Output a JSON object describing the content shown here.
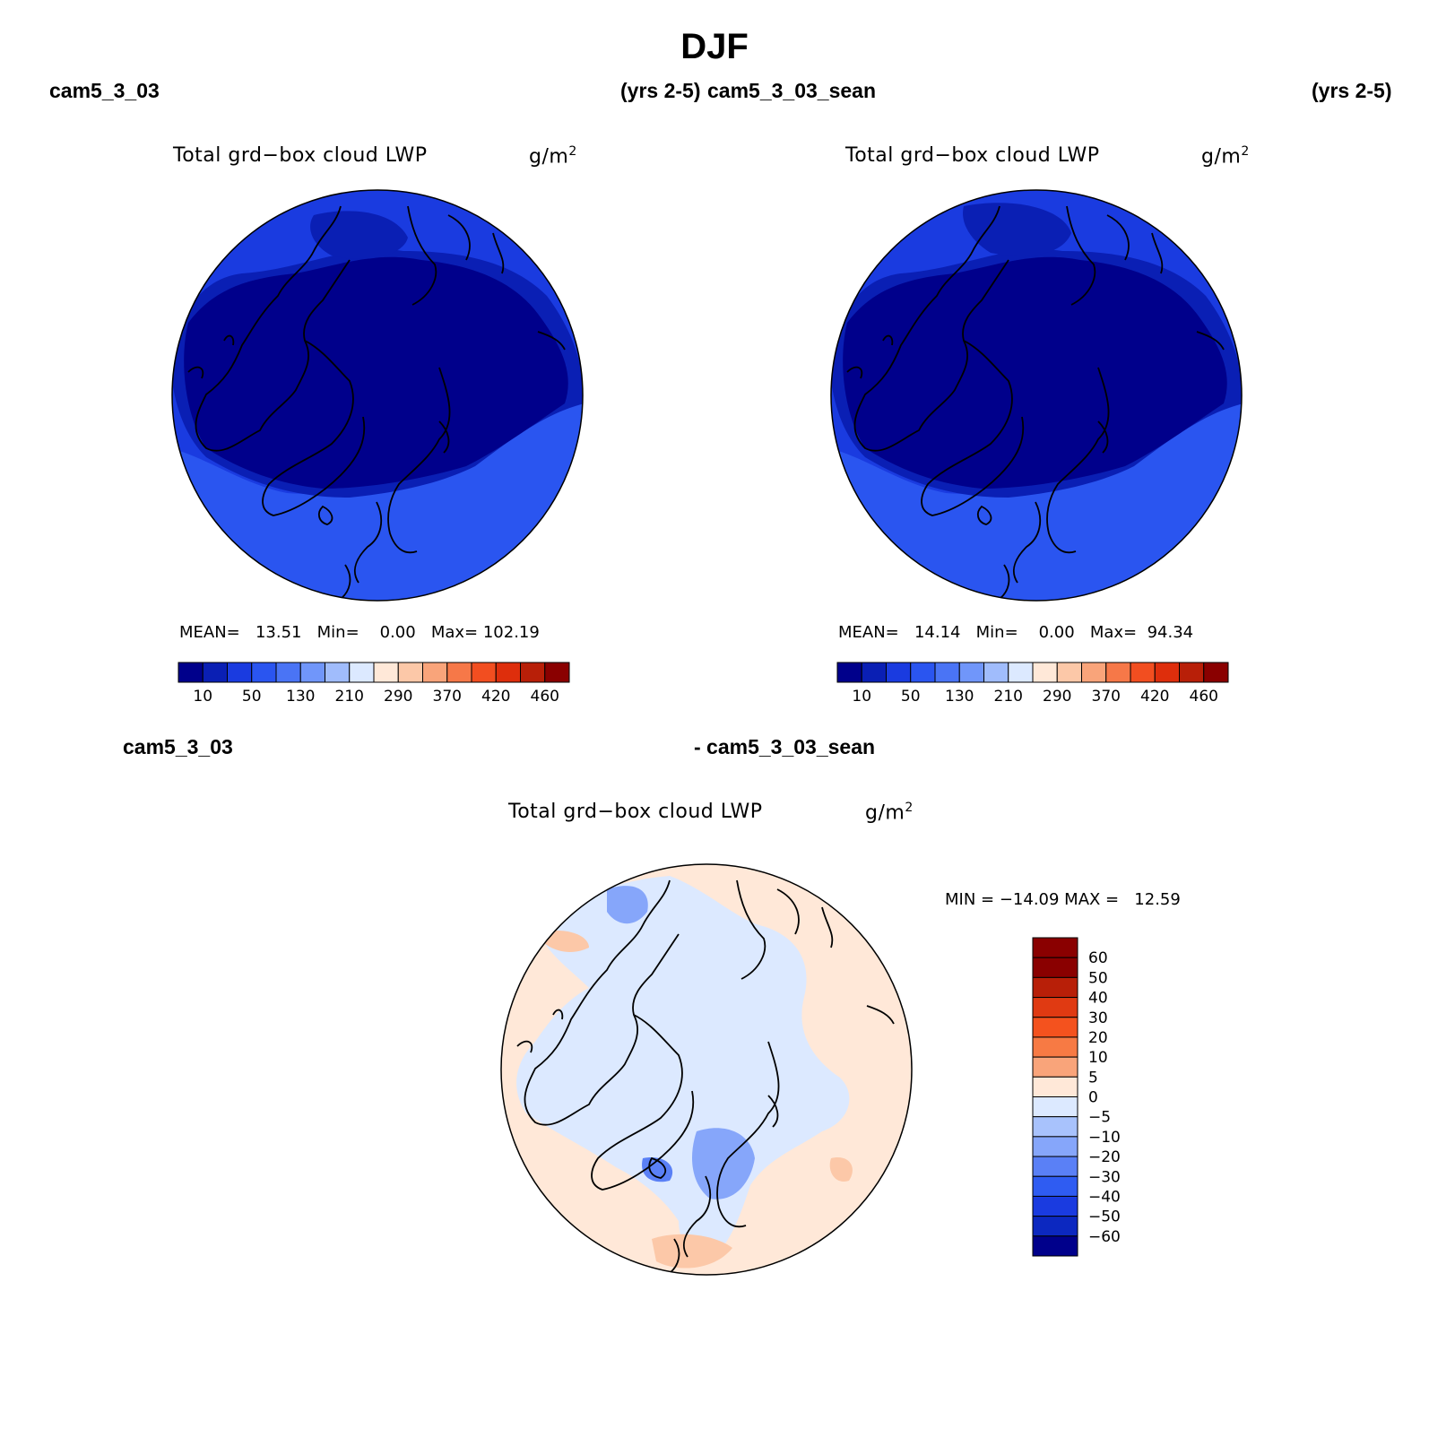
{
  "title": "DJF",
  "panels": [
    {
      "case_label": "cam5_3_03",
      "years_label": "(yrs 2-5)",
      "plot_title": "Total grd−box cloud LWP",
      "units_base": "g/m",
      "units_exp": "2",
      "stats": {
        "mean_label": "MEAN=",
        "mean": "13.51",
        "min_label": "Min=",
        "min": "0.00",
        "max_label": "Max=",
        "max": "102.19"
      },
      "colorbar_ticks": [
        "10",
        "50",
        "130",
        "210",
        "290",
        "370",
        "420",
        "460"
      ]
    },
    {
      "case_label": "cam5_3_03_sean",
      "years_label": "(yrs 2-5)",
      "plot_title": "Total grd−box cloud LWP",
      "units_base": "g/m",
      "units_exp": "2",
      "stats": {
        "mean_label": "MEAN=",
        "mean": "14.14",
        "min_label": "Min=",
        "min": "0.00",
        "max_label": "Max=",
        "max": "94.34"
      },
      "colorbar_ticks": [
        "10",
        "50",
        "130",
        "210",
        "290",
        "370",
        "420",
        "460"
      ]
    }
  ],
  "diff_panel": {
    "case_label_left": "cam5_3_03",
    "case_label_right": "- cam5_3_03_sean",
    "plot_title": "Total grd−box cloud LWP",
    "units_base": "g/m",
    "units_exp": "2",
    "minmax": "MIN = −14.09 MAX =   12.59",
    "colorbar_ticks": [
      "60",
      "50",
      "40",
      "30",
      "20",
      "10",
      "5",
      "0",
      "−5",
      "−10",
      "−20",
      "−30",
      "−40",
      "−50",
      "−60"
    ]
  },
  "colors": {
    "abs_scale": [
      "#00008b",
      "#0a1fb4",
      "#1a3be0",
      "#2a55f0",
      "#4a74f5",
      "#7096fa",
      "#a0bcfc",
      "#dce9ff",
      "#ffe8d8",
      "#fcc8a8",
      "#f9a47a",
      "#f67848",
      "#f24e20",
      "#de2e0c",
      "#b81f08",
      "#8a0000"
    ],
    "diff_scale": [
      "#8a0000",
      "#b81f08",
      "#e03a12",
      "#f4521e",
      "#f77a44",
      "#f9a47a",
      "#ffe8d8",
      "#dce9ff",
      "#a8c2fc",
      "#86a6fa",
      "#5a80f6",
      "#2f5cf2",
      "#1a3be0",
      "#0c28c0",
      "#00008b"
    ],
    "map_regions": [
      "#00008b",
      "#0a1fb4",
      "#1a3be0",
      "#dce9ff",
      "#ffe8d8",
      "#a8c2fc"
    ]
  },
  "chart_data": [
    {
      "type": "heatmap",
      "title": "Total grd−box cloud LWP",
      "case": "cam5_3_03",
      "projection": "north-polar-stereographic",
      "units": "g/m^2",
      "mean": 13.51,
      "min": 0.0,
      "max": 102.19,
      "levels": [
        10,
        50,
        130,
        210,
        290,
        370,
        420,
        460
      ]
    },
    {
      "type": "heatmap",
      "title": "Total grd−box cloud LWP",
      "case": "cam5_3_03_sean",
      "projection": "north-polar-stereographic",
      "units": "g/m^2",
      "mean": 14.14,
      "min": 0.0,
      "max": 94.34,
      "levels": [
        10,
        50,
        130,
        210,
        290,
        370,
        420,
        460
      ]
    },
    {
      "type": "heatmap",
      "title": "Total grd−box cloud LWP",
      "case": "cam5_3_03 - cam5_3_03_sean",
      "projection": "north-polar-stereographic",
      "units": "g/m^2",
      "min": -14.09,
      "max": 12.59,
      "levels": [
        -60,
        -50,
        -40,
        -30,
        -20,
        -10,
        -5,
        0,
        5,
        10,
        20,
        30,
        40,
        50,
        60
      ]
    }
  ]
}
